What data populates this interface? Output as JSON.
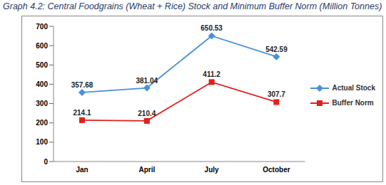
{
  "chart_data": {
    "type": "line",
    "title": "Graph 4.2: Central Foodgrains (Wheat + Rice) Stock and Minimum Buffer Norm (Million Tonnes)",
    "categories": [
      "Jan",
      "April",
      "July",
      "October"
    ],
    "series": [
      {
        "name": "Actual Stock",
        "color": "#4a90d9",
        "marker": "diamond",
        "values": [
          357.68,
          381.04,
          650.53,
          542.59
        ]
      },
      {
        "name": "Buffer Norm",
        "color": "#e0201b",
        "marker": "square",
        "values": [
          214.1,
          210.4,
          411.2,
          307.7
        ]
      }
    ],
    "ylim": [
      0,
      700
    ],
    "yticks": [
      0,
      100,
      200,
      300,
      400,
      500,
      600,
      700
    ],
    "grid": false,
    "legend": "right",
    "data_labels": true
  }
}
